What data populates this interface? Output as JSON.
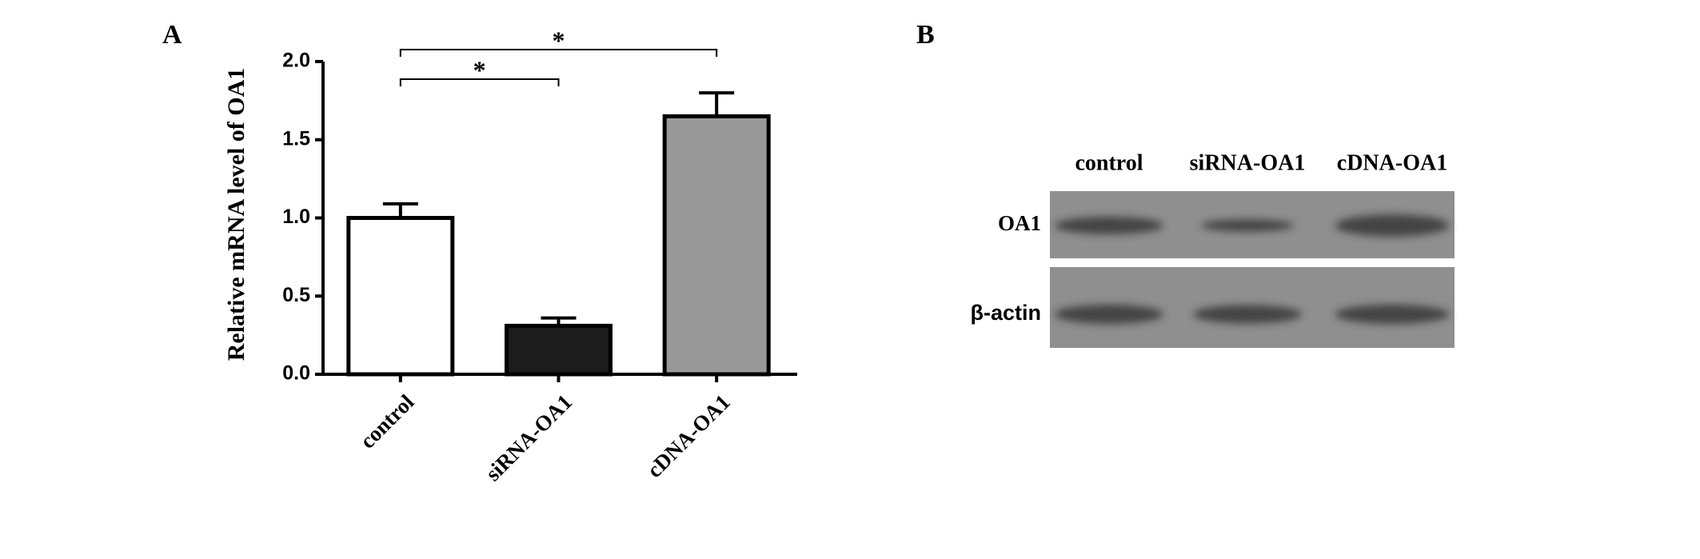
{
  "chart_data": [
    {
      "type": "bar",
      "panel_label": "A",
      "y_label": "Relative mRNA level of OA1",
      "categories": [
        "control",
        "siRNA-OA1",
        "cDNA-OA1"
      ],
      "values": [
        1.0,
        0.31,
        1.65
      ],
      "errors": [
        0.09,
        0.05,
        0.15
      ],
      "colors": [
        "#ffffff",
        "#1c1c1c",
        "#999999"
      ],
      "ylim": [
        0,
        2.0
      ],
      "yticks": [
        {
          "value": 0,
          "label": "0.0"
        },
        0.5,
        {
          "value": 1,
          "label": "1.0"
        },
        1.5,
        {
          "value": 2,
          "label": "2.0"
        }
      ],
      "annotations": [
        {
          "text": "*",
          "between": [
            "control",
            "siRNA-OA1"
          ]
        },
        {
          "text": "*",
          "between": [
            "control",
            "cDNA-OA1"
          ]
        }
      ]
    },
    {
      "type": "blot",
      "panel_label": "B",
      "lanes": [
        "control",
        "siRNA-OA1",
        "cDNA-OA1"
      ],
      "rows": [
        "OA1",
        "β-actin"
      ]
    }
  ]
}
